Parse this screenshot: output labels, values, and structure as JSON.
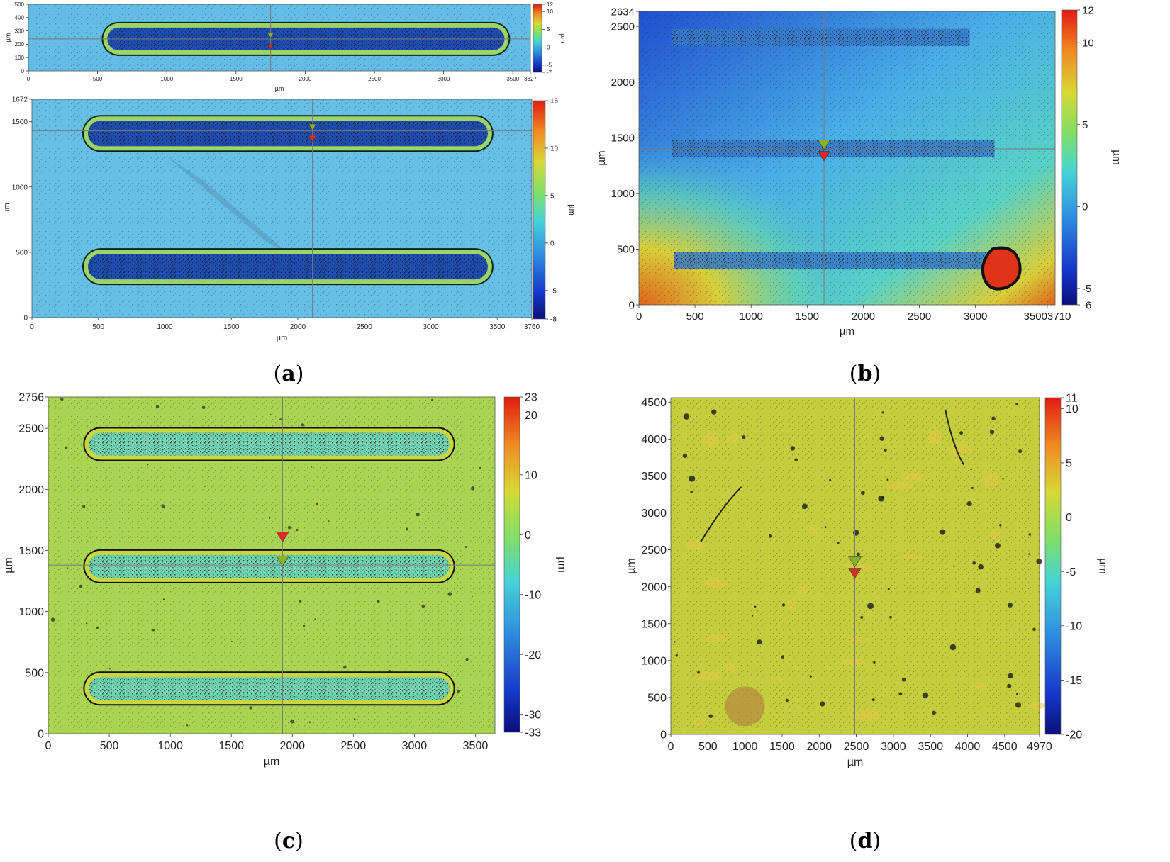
{
  "figure": {
    "panels": [
      {
        "id": "a",
        "label_open": "(",
        "label_letter": "a",
        "label_close": ")"
      },
      {
        "id": "b",
        "label_open": "(",
        "label_letter": "b",
        "label_close": ")"
      },
      {
        "id": "c",
        "label_open": "(",
        "label_letter": "c",
        "label_close": ")"
      },
      {
        "id": "d",
        "label_open": "(",
        "label_letter": "d",
        "label_close": ")"
      }
    ]
  },
  "chart_data": [
    {
      "id": "a-top",
      "type": "heatmap",
      "xlabel": "µm",
      "ylabel": "µm",
      "colorbar_label": "µm",
      "xlim": [
        0,
        3627
      ],
      "ylim": [
        0,
        500
      ],
      "zlim": [
        -7,
        12
      ],
      "x_ticks": [
        "0",
        "500",
        "1000",
        "1500",
        "2000",
        "2500",
        "3000",
        "3500",
        "3627"
      ],
      "y_ticks": [
        "0",
        "100",
        "200",
        "300",
        "400",
        "500"
      ],
      "colorbar_ticks": [
        "12",
        "10",
        "5",
        "0",
        "-5",
        "-7"
      ],
      "palette": {
        "background": "#63bde6",
        "groove": "#1f4fb5",
        "rim": "#9ad46a"
      },
      "tracks": [
        {
          "x0": 550,
          "x1": 3460,
          "y": 240
        }
      ],
      "crosshair": {
        "x": 1750,
        "y": 240
      }
    },
    {
      "id": "a-bottom",
      "type": "heatmap",
      "xlabel": "µm",
      "ylabel": "µm",
      "colorbar_label": "µm",
      "xlim": [
        0,
        3760
      ],
      "ylim": [
        0,
        1672
      ],
      "zlim": [
        -8,
        15
      ],
      "x_ticks": [
        "0",
        "500",
        "1000",
        "1500",
        "2000",
        "2500",
        "3000",
        "3500",
        "3760"
      ],
      "y_ticks": [
        "0",
        "500",
        "1000",
        "1500",
        "1672"
      ],
      "colorbar_ticks": [
        "15",
        "10",
        "5",
        "0",
        "-5",
        "-8"
      ],
      "palette": {
        "background": "#66c0e6",
        "groove": "#1f4fb5",
        "rim": "#9ad46a"
      },
      "tracks": [
        {
          "x0": 400,
          "x1": 3450,
          "y": 1410
        },
        {
          "x0": 400,
          "x1": 3450,
          "y": 390
        }
      ],
      "crosshair": {
        "x": 2110,
        "y": 1430
      }
    },
    {
      "id": "b",
      "type": "heatmap",
      "xlabel": "µm",
      "ylabel": "µm",
      "colorbar_label": "µm",
      "xlim": [
        0,
        3710
      ],
      "ylim": [
        0,
        2634
      ],
      "zlim": [
        -6,
        12
      ],
      "x_ticks": [
        "0",
        "500",
        "1000",
        "1500",
        "2000",
        "2500",
        "3000",
        "35003710"
      ],
      "y_ticks": [
        "0",
        "500",
        "1000",
        "1500",
        "2000",
        "2500",
        "2634"
      ],
      "colorbar_ticks": [
        "12",
        "10",
        "5",
        "0",
        "-5",
        "-6"
      ],
      "palette": {
        "background": "#4aa0e0",
        "groove": "#1b2b55",
        "rim": "#3a7fd0"
      },
      "tracks": [
        {
          "x0": 290,
          "x1": 2950,
          "y": 2400
        },
        {
          "x0": 290,
          "x1": 3170,
          "y": 1400
        },
        {
          "x0": 310,
          "x1": 3150,
          "y": 400
        }
      ],
      "crosshair": {
        "x": 1650,
        "y": 1400
      }
    },
    {
      "id": "c",
      "type": "heatmap",
      "xlabel": "µm",
      "ylabel": "µm",
      "colorbar_label": "µm",
      "xlim": [
        0,
        3660
      ],
      "ylim": [
        0,
        2756
      ],
      "zlim": [
        -33,
        23
      ],
      "x_ticks": [
        "0",
        "500",
        "1000",
        "1500",
        "2000",
        "2500",
        "3000",
        "3500"
      ],
      "y_ticks": [
        "0",
        "500",
        "1000",
        "1500",
        "2000",
        "2500",
        "2756"
      ],
      "colorbar_ticks": [
        "23",
        "20",
        "10",
        "0",
        "-10",
        "-20",
        "-30",
        "-33"
      ],
      "palette": {
        "background": "#a9d552",
        "groove": "#6ed6b2",
        "rim": "#1a1a1a"
      },
      "tracks": [
        {
          "x0": 310,
          "x1": 3310,
          "y": 2370
        },
        {
          "x0": 310,
          "x1": 3310,
          "y": 1370
        },
        {
          "x0": 310,
          "x1": 3310,
          "y": 370
        }
      ],
      "crosshair": {
        "x": 1920,
        "y": 1380
      }
    },
    {
      "id": "d",
      "type": "heatmap",
      "xlabel": "µm",
      "ylabel": "µm",
      "colorbar_label": "µm",
      "xlim": [
        0,
        4970
      ],
      "ylim": [
        0,
        4560
      ],
      "zlim": [
        -20,
        11
      ],
      "x_ticks": [
        "0",
        "500",
        "1000",
        "1500",
        "2000",
        "2500",
        "3000",
        "3500",
        "4000",
        "4500",
        "4970"
      ],
      "y_ticks": [
        "0",
        "500",
        "1000",
        "1500",
        "2000",
        "2500",
        "3000",
        "3500",
        "4000",
        "4500"
      ],
      "colorbar_ticks": [
        "11",
        "10",
        "5",
        "0",
        "-5",
        "-10",
        "-15",
        "-20"
      ],
      "palette": {
        "background": "#c5cf3e",
        "groove": "#c5cf3e",
        "rim": "#1a1a1a"
      },
      "tracks": [],
      "crosshair": {
        "x": 2480,
        "y": 2280
      }
    }
  ]
}
